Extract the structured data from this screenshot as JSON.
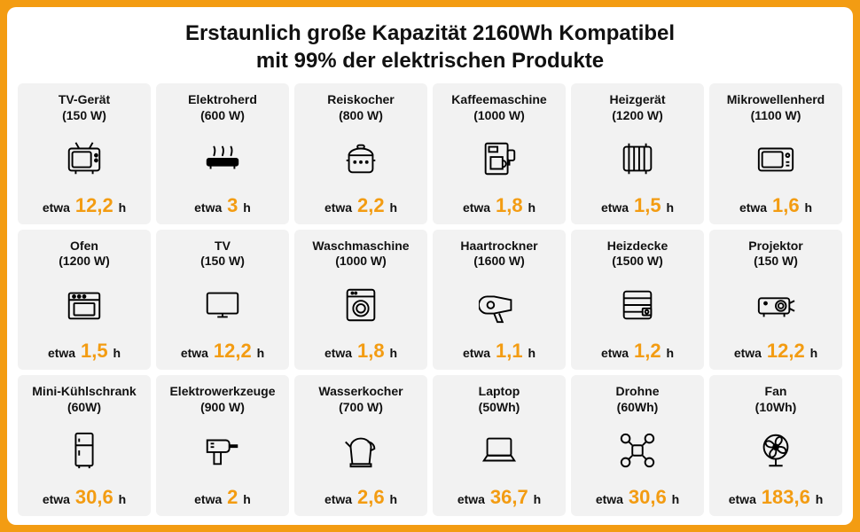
{
  "colors": {
    "border": "#f39c12",
    "card_bg": "#f2f2f2",
    "accent": "#f39c12",
    "text": "#111111",
    "icon_stroke": "#000000"
  },
  "title": {
    "line1": "Erstaunlich große Kapazität 2160Wh Kompatibel",
    "line2": "mit 99% der elektrischen Produkte",
    "fontsize": 24
  },
  "label_prefix": "etwa",
  "label_suffix": "h",
  "icon_style": {
    "stroke_width": 2,
    "fill": "none"
  },
  "items": [
    {
      "name": "TV-Gerät",
      "power": "(150 W)",
      "value": "12,2",
      "icon": "crt-tv"
    },
    {
      "name": "Elektroherd",
      "power": "(600 W)",
      "value": "3",
      "icon": "stove"
    },
    {
      "name": "Reiskocher",
      "power": "(800 W)",
      "value": "2,2",
      "icon": "rice-cooker"
    },
    {
      "name": "Kaffeemaschine",
      "power": "(1000 W)",
      "value": "1,8",
      "icon": "coffee-maker"
    },
    {
      "name": "Heizgerät",
      "power": "(1200 W)",
      "value": "1,5",
      "icon": "heater"
    },
    {
      "name": "Mikrowellenherd",
      "power": "(1100 W)",
      "value": "1,6",
      "icon": "microwave"
    },
    {
      "name": "Ofen",
      "power": "(1200 W)",
      "value": "1,5",
      "icon": "oven"
    },
    {
      "name": "TV",
      "power": "(150 W)",
      "value": "12,2",
      "icon": "flat-tv"
    },
    {
      "name": "Waschmaschine",
      "power": "(1000 W)",
      "value": "1,8",
      "icon": "washer"
    },
    {
      "name": "Haartrockner",
      "power": "(1600 W)",
      "value": "1,1",
      "icon": "hair-dryer"
    },
    {
      "name": "Heizdecke",
      "power": "(1500 W)",
      "value": "1,2",
      "icon": "blanket"
    },
    {
      "name": "Projektor",
      "power": "(150 W)",
      "value": "12,2",
      "icon": "projector"
    },
    {
      "name": "Mini-Kühlschrank",
      "power": "(60W)",
      "value": "30,6",
      "icon": "fridge"
    },
    {
      "name": "Elektrowerkzeuge",
      "power": "(900 W)",
      "value": "2",
      "icon": "drill"
    },
    {
      "name": "Wasserkocher",
      "power": "(700 W)",
      "value": "2,6",
      "icon": "kettle"
    },
    {
      "name": "Laptop",
      "power": "(50Wh)",
      "value": "36,7",
      "icon": "laptop"
    },
    {
      "name": "Drohne",
      "power": "(60Wh)",
      "value": "30,6",
      "icon": "drone"
    },
    {
      "name": "Fan",
      "power": "(10Wh)",
      "value": "183,6",
      "icon": "fan"
    }
  ]
}
